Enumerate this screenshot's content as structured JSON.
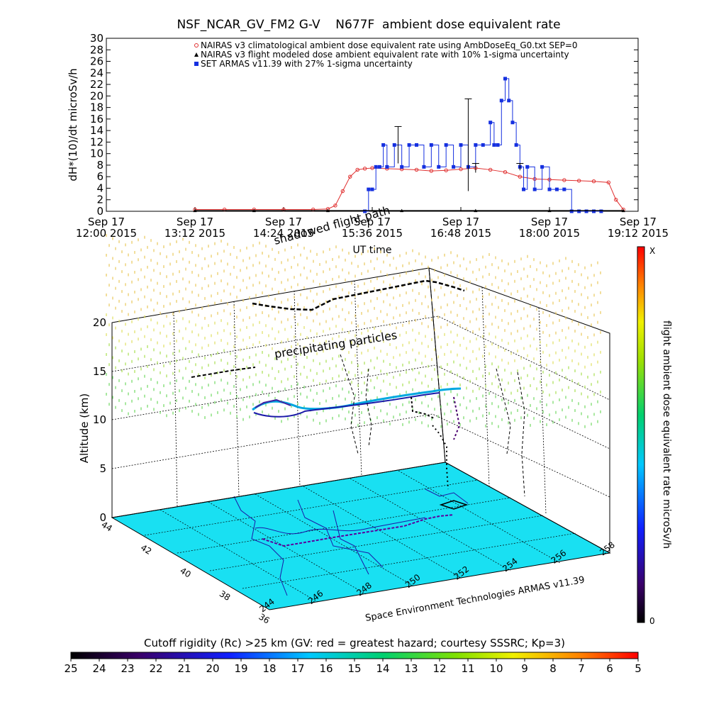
{
  "header": {
    "title": "NSF_NCAR_GV_FM2 G-V    N677F  ambient dose equivalent rate"
  },
  "chart_data": [
    {
      "type": "line",
      "title": "NSF_NCAR_GV_FM2 G-V    N677F  ambient dose equivalent rate",
      "xlabel": "UT time",
      "ylabel": "dH*(10)/dt microSv/h",
      "ylim": [
        0,
        30
      ],
      "xlim_hours": [
        12.0,
        19.2
      ],
      "yticks": [
        "0",
        "2",
        "4",
        "6",
        "8",
        "10",
        "12",
        "14",
        "16",
        "18",
        "20",
        "22",
        "24",
        "26",
        "28",
        "30"
      ],
      "xticks": [
        {
          "line1": "Sep 17",
          "line2": "12:00 2015"
        },
        {
          "line1": "Sep 17",
          "line2": "13:12 2015"
        },
        {
          "line1": "Sep 17",
          "line2": "14:24 2015"
        },
        {
          "line1": "Sep 17",
          "line2": "15:36 2015"
        },
        {
          "line1": "Sep 17",
          "line2": "16:48 2015"
        },
        {
          "line1": "Sep 17",
          "line2": "18:00 2015"
        },
        {
          "line1": "Sep 17",
          "line2": "19:12 2015"
        }
      ],
      "legend_position": "top-right",
      "series": [
        {
          "name": "NAIRAS v3 climatological ambient dose equivalent rate using AmbDoseEq_G0.txt SEP=0",
          "color": "#e03030",
          "marker": "circle",
          "x": [
            13.2,
            13.6,
            14.0,
            14.4,
            14.8,
            15.0,
            15.1,
            15.2,
            15.3,
            15.4,
            15.5,
            15.6,
            15.8,
            16.0,
            16.2,
            16.4,
            16.6,
            16.8,
            17.0,
            17.2,
            17.4,
            17.6,
            17.8,
            18.0,
            18.2,
            18.4,
            18.6,
            18.8,
            18.9,
            19.0
          ],
          "values": [
            0.3,
            0.3,
            0.3,
            0.3,
            0.3,
            0.4,
            1.0,
            3.5,
            6.0,
            7.2,
            7.4,
            7.5,
            7.4,
            7.3,
            7.2,
            7.0,
            7.1,
            7.3,
            7.5,
            7.2,
            6.8,
            6.0,
            5.6,
            5.5,
            5.4,
            5.3,
            5.2,
            5.0,
            2.0,
            0.3
          ]
        },
        {
          "name": "NAIRAS v3 flight modeled dose ambient equivalent rate with 10% 1-sigma uncertainty",
          "color": "#000000",
          "marker": "triangle",
          "x": [
            13.2,
            14.0,
            15.0,
            16.0,
            17.0,
            18.0,
            19.0
          ],
          "values": [
            0.1,
            0.1,
            0.1,
            0.1,
            0.1,
            0.1,
            0.1
          ]
        },
        {
          "name": "SET ARMAS v11.39 with 27% 1-sigma uncertainty",
          "color": "#1530e0",
          "marker": "square",
          "x": [
            15.5,
            15.55,
            15.6,
            15.65,
            15.7,
            15.75,
            15.8,
            15.9,
            16.0,
            16.1,
            16.2,
            16.3,
            16.4,
            16.5,
            16.6,
            16.7,
            16.8,
            16.9,
            17.0,
            17.1,
            17.2,
            17.25,
            17.3,
            17.35,
            17.4,
            17.45,
            17.5,
            17.55,
            17.6,
            17.65,
            17.7,
            17.8,
            17.9,
            18.0,
            18.1,
            18.2,
            18.3,
            18.4,
            18.5,
            18.6,
            18.7
          ],
          "values": [
            0,
            3.8,
            3.8,
            7.7,
            7.7,
            11.5,
            7.7,
            11.5,
            7.7,
            11.5,
            11.5,
            7.7,
            11.5,
            7.7,
            11.5,
            7.7,
            11.5,
            7.7,
            11.5,
            11.5,
            15.4,
            11.5,
            11.5,
            19.2,
            23.0,
            19.2,
            15.4,
            11.5,
            7.7,
            3.8,
            7.7,
            3.8,
            7.7,
            3.8,
            3.8,
            3.8,
            0,
            0,
            0,
            0,
            0
          ]
        }
      ]
    },
    {
      "type": "scatter",
      "title": "",
      "zlabel": "Altitude (km)",
      "zticks": [
        "0",
        "5",
        "10",
        "15",
        "20"
      ],
      "lat_ticks": [
        "36",
        "38",
        "40",
        "42",
        "44"
      ],
      "lon_ticks": [
        "244",
        "246",
        "248",
        "250",
        "252",
        "254",
        "256",
        "258"
      ],
      "colorbar_label": "flight ambient dose equivalent rate microSv/h",
      "colorbar_top": "X",
      "colorbar_bottom": "0",
      "credit": "Space Environment Technologies ARMAS v11.39",
      "annotations": [
        "precipitating particles",
        "shadowed flight path"
      ]
    },
    {
      "type": "heatmap",
      "title": "Cutoff rigidity (Rc) >25 km (GV: red = greatest hazard; courtesy SSSRC; Kp=3)",
      "ticks": [
        "25",
        "24",
        "23",
        "22",
        "21",
        "20",
        "19",
        "18",
        "17",
        "16",
        "15",
        "14",
        "13",
        "12",
        "11",
        "10",
        "9",
        "8",
        "7",
        "6",
        "5"
      ]
    }
  ]
}
